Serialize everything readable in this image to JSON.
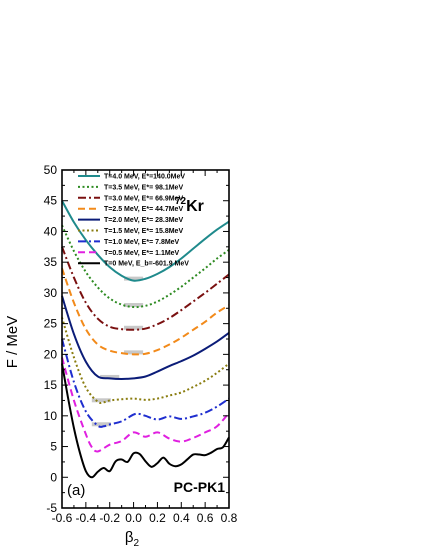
{
  "chart_data": {
    "type": "line",
    "nucleus": {
      "mass": "72",
      "symbol": "Kr"
    },
    "panel_label": "(a)",
    "model_label": "PC-PK1",
    "xlabel": {
      "main": "β",
      "sub": "2"
    },
    "ylabel": "F / MeV",
    "xlim": [
      -0.6,
      0.8
    ],
    "ylim": [
      -5,
      50
    ],
    "x_ticks": [
      "-0.6",
      "-0.4",
      "-0.2",
      "0.0",
      "0.2",
      "0.4",
      "0.6",
      "0.8"
    ],
    "y_ticks": [
      "-5",
      "0",
      "5",
      "10",
      "15",
      "20",
      "25",
      "30",
      "35",
      "40",
      "45",
      "50"
    ],
    "legend_placement": "top-left",
    "series": [
      {
        "name": "T=4.0 MeV, E*=140.0MeV",
        "color": "#1f8a8c",
        "dash": "solid",
        "min_band": 0.0,
        "x": [
          -0.6,
          -0.5,
          -0.4,
          -0.3,
          -0.2,
          -0.1,
          0.0,
          0.1,
          0.2,
          0.3,
          0.4,
          0.5,
          0.6,
          0.7,
          0.8
        ],
        "y": [
          45.0,
          41.5,
          38.6,
          36.2,
          34.2,
          32.8,
          32.0,
          32.3,
          33.1,
          34.2,
          35.6,
          37.2,
          38.8,
          40.3,
          41.6
        ]
      },
      {
        "name": "T=3.5 MeV, E*= 98.1MeV",
        "color": "#2e8b22",
        "dash": "dot",
        "min_band": 0.0,
        "x": [
          -0.6,
          -0.5,
          -0.4,
          -0.3,
          -0.2,
          -0.1,
          0.0,
          0.1,
          0.2,
          0.3,
          0.4,
          0.5,
          0.6,
          0.7,
          0.8
        ],
        "y": [
          41.0,
          36.8,
          33.4,
          30.9,
          29.1,
          28.1,
          27.7,
          27.9,
          28.6,
          29.7,
          31.0,
          32.5,
          34.0,
          35.6,
          37.0
        ]
      },
      {
        "name": "T=3.0 MeV, E*= 66.9MeV",
        "color": "#7a1010",
        "dash": "dashdot",
        "min_band": 0.0,
        "x": [
          -0.6,
          -0.5,
          -0.4,
          -0.3,
          -0.2,
          -0.1,
          0.0,
          0.1,
          0.2,
          0.3,
          0.4,
          0.5,
          0.6,
          0.7,
          0.8
        ],
        "y": [
          37.5,
          32.5,
          28.4,
          25.8,
          24.5,
          24.1,
          24.0,
          24.2,
          24.9,
          25.9,
          27.2,
          28.6,
          30.0,
          31.5,
          33.0
        ]
      },
      {
        "name": "T=2.5 MeV, E*= 44.7MeV",
        "color": "#f28a1a",
        "dash": "dash",
        "min_band": 0.0,
        "x": [
          -0.6,
          -0.5,
          -0.4,
          -0.3,
          -0.2,
          -0.1,
          0.0,
          0.1,
          0.2,
          0.3,
          0.4,
          0.5,
          0.6,
          0.7,
          0.8
        ],
        "y": [
          34.0,
          28.4,
          24.1,
          21.6,
          20.6,
          20.2,
          20.0,
          20.1,
          20.7,
          21.6,
          22.7,
          24.0,
          25.3,
          26.8,
          28.0
        ]
      },
      {
        "name": "T=2.0 MeV, E*= 28.3MeV",
        "color": "#0b1c78",
        "dash": "solid",
        "min_band": -0.2,
        "x": [
          -0.6,
          -0.5,
          -0.4,
          -0.3,
          -0.2,
          -0.1,
          0.0,
          0.1,
          0.2,
          0.3,
          0.4,
          0.5,
          0.6,
          0.7,
          0.8
        ],
        "y": [
          29.5,
          23.3,
          18.8,
          16.4,
          16.1,
          16.0,
          16.1,
          16.4,
          17.2,
          18.1,
          18.9,
          19.8,
          20.9,
          22.1,
          23.5
        ]
      },
      {
        "name": "T=1.5 MeV, E*= 15.8MeV",
        "color": "#8a7d10",
        "dash": "dot",
        "min_band": -0.27,
        "x": [
          -0.6,
          -0.5,
          -0.4,
          -0.3,
          -0.25,
          -0.2,
          -0.1,
          0.0,
          0.1,
          0.2,
          0.3,
          0.4,
          0.5,
          0.6,
          0.7,
          0.8
        ],
        "y": [
          26.0,
          19.5,
          14.6,
          12.3,
          12.2,
          12.5,
          12.7,
          12.8,
          12.6,
          12.8,
          13.3,
          13.8,
          14.7,
          15.7,
          17.0,
          18.5
        ]
      },
      {
        "name": "T=1.0 MeV, E*=  7.8MeV",
        "color": "#1f2ecf",
        "dash": "dashdot",
        "min_band": -0.27,
        "x": [
          -0.6,
          -0.5,
          -0.4,
          -0.3,
          -0.25,
          -0.2,
          -0.1,
          0.0,
          0.05,
          0.1,
          0.2,
          0.3,
          0.4,
          0.5,
          0.6,
          0.7,
          0.8
        ],
        "y": [
          22.5,
          15.5,
          10.7,
          8.4,
          8.3,
          8.6,
          9.1,
          10.2,
          10.3,
          10.0,
          9.4,
          9.9,
          9.5,
          9.9,
          10.5,
          11.5,
          12.8
        ]
      },
      {
        "name": "T=0.5 MeV, E*=  1.1MeV",
        "color": "#e020e0",
        "dash": "dash",
        "min_band": null,
        "x": [
          -0.6,
          -0.5,
          -0.4,
          -0.35,
          -0.3,
          -0.2,
          -0.1,
          0.0,
          0.1,
          0.2,
          0.3,
          0.4,
          0.5,
          0.6,
          0.7,
          0.8
        ],
        "y": [
          19.5,
          12.5,
          7.0,
          4.9,
          4.2,
          5.3,
          5.9,
          7.3,
          6.6,
          7.3,
          6.3,
          5.8,
          6.4,
          7.3,
          8.3,
          10.5
        ]
      },
      {
        "name": "T=0 MeV, E_b=-601.9 MeV",
        "color": "#000000",
        "dash": "solid",
        "min_band": null,
        "x": [
          -0.6,
          -0.55,
          -0.5,
          -0.45,
          -0.4,
          -0.35,
          -0.3,
          -0.25,
          -0.2,
          -0.15,
          -0.1,
          -0.05,
          0.0,
          0.05,
          0.1,
          0.15,
          0.2,
          0.25,
          0.3,
          0.35,
          0.4,
          0.45,
          0.5,
          0.55,
          0.6,
          0.65,
          0.7,
          0.75,
          0.8
        ],
        "y": [
          18.5,
          13.0,
          8.0,
          4.0,
          1.0,
          0.0,
          0.9,
          1.5,
          1.0,
          2.6,
          2.9,
          2.5,
          3.9,
          3.8,
          2.6,
          1.7,
          2.3,
          3.2,
          2.2,
          1.8,
          2.1,
          2.9,
          3.7,
          3.7,
          3.6,
          4.0,
          4.6,
          4.9,
          6.5
        ]
      }
    ]
  }
}
